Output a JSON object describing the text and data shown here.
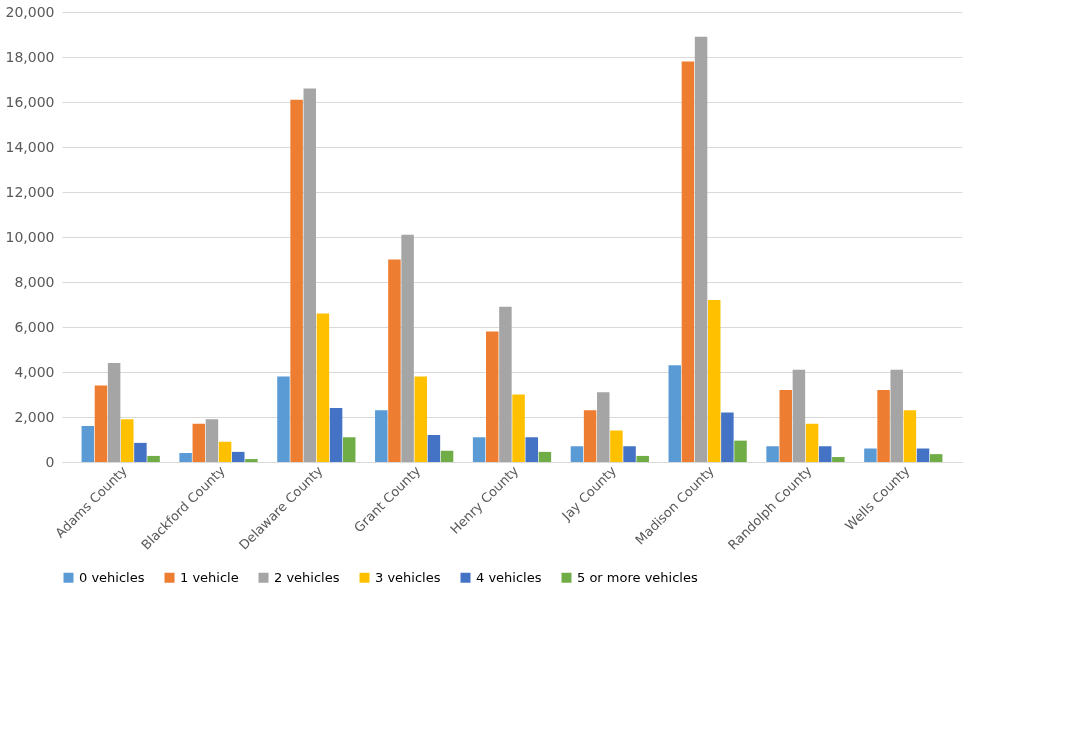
{
  "chart_data": {
    "type": "bar",
    "categories": [
      "Adams County",
      "Blackford County",
      "Delaware County",
      "Grant County",
      "Henry County",
      "Jay County",
      "Madison County",
      "Randolph County",
      "Wells County"
    ],
    "series": [
      {
        "name": "0 vehicles",
        "color": "#5b9bd5",
        "values": [
          1600,
          400,
          3800,
          2300,
          1100,
          700,
          4300,
          700,
          600
        ]
      },
      {
        "name": "1 vehicle",
        "color": "#ed7d31",
        "values": [
          3400,
          1700,
          16100,
          9000,
          5800,
          2300,
          17800,
          3200,
          3200
        ]
      },
      {
        "name": "2 vehicles",
        "color": "#a5a5a5",
        "values": [
          4400,
          1900,
          16600,
          10100,
          6900,
          3100,
          18900,
          4100,
          4100
        ]
      },
      {
        "name": "3 vehicles",
        "color": "#ffc000",
        "values": [
          1900,
          900,
          6600,
          3800,
          3000,
          1400,
          7200,
          1700,
          2300
        ]
      },
      {
        "name": "4 vehicles",
        "color": "#4472c4",
        "values": [
          850,
          450,
          2400,
          1200,
          1100,
          700,
          2200,
          700,
          600
        ]
      },
      {
        "name": "5 or more vehicles",
        "color": "#70ad47",
        "values": [
          270,
          130,
          1100,
          500,
          450,
          270,
          950,
          220,
          350
        ]
      }
    ],
    "ylim": [
      0,
      20000
    ],
    "yticks": [
      {
        "value": 0,
        "label": "0"
      },
      {
        "value": 2000,
        "label": "2,000"
      },
      {
        "value": 4000,
        "label": "4,000"
      },
      {
        "value": 6000,
        "label": "6,000"
      },
      {
        "value": 8000,
        "label": "8,000"
      },
      {
        "value": 10000,
        "label": "10,000"
      },
      {
        "value": 12000,
        "label": "12,000"
      },
      {
        "value": 14000,
        "label": "14,000"
      },
      {
        "value": 16000,
        "label": "16,000"
      },
      {
        "value": 18000,
        "label": "18,000"
      },
      {
        "value": 20000,
        "label": "20,000"
      }
    ],
    "grid": "y",
    "legend": "bottom"
  }
}
